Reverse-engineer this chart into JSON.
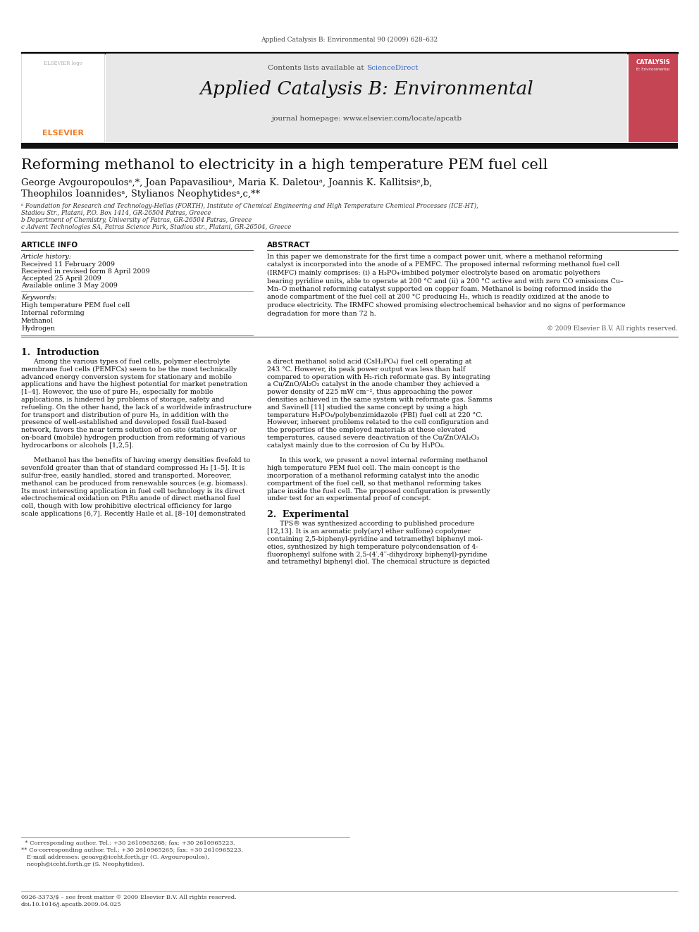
{
  "page_width": 9.92,
  "page_height": 13.23,
  "bg_color": "#ffffff",
  "journal_ref": "Applied Catalysis B: Environmental 90 (2009) 628–632",
  "header_bg": "#e8e8e8",
  "header_line_color": "#000000",
  "sciencedirect_color": "#3366cc",
  "journal_name": "Applied Catalysis B: Environmental",
  "journal_homepage": "journal homepage: www.elsevier.com/locate/apcatb",
  "title": "Reforming methanol to electricity in a high temperature PEM fuel cell",
  "author_line1": "George Avgouropoulosᵃ,*, Joan Papavasiliouᵃ, Maria K. Daletouᵃ, Joannis K. Kallitsisᵃ,b,",
  "author_line2": "Theophilos Ioannidesᵃ, Stylianos Neophytidesᵃ,c,**",
  "affil_a1": "ᵃ Foundation for Research and Technology-Hellas (FORTH), Institute of Chemical Engineering and High Temperature Chemical Processes (ICE-HT),",
  "affil_a2": "Stadiou Str., Platani, P.O. Box 1414, GR-26504 Patras, Greece",
  "affil_b": "b Department of Chemistry, University of Patras, GR-26504 Patras, Greece",
  "affil_c": "c Advent Technologies SA, Patras Science Park, Stadiou str., Platani, GR-26504, Greece",
  "section_article_info": "ARTICLE INFO",
  "article_history_label": "Article history:",
  "received1": "Received 11 February 2009",
  "received2": "Received in revised form 8 April 2009",
  "accepted": "Accepted 25 April 2009",
  "available": "Available online 3 May 2009",
  "keywords_label": "Keywords:",
  "keywords": [
    "High temperature PEM fuel cell",
    "Internal reforming",
    "Methanol",
    "Hydrogen"
  ],
  "section_abstract": "ABSTRACT",
  "abstract_lines": [
    "In this paper we demonstrate for the first time a compact power unit, where a methanol reforming",
    "catalyst is incorporated into the anode of a PEMFC. The proposed internal reforming methanol fuel cell",
    "(IRMFC) mainly comprises: (i) a H₃PO₄-imbibed polymer electrolyte based on aromatic polyethers",
    "bearing pyridine units, able to operate at 200 °C and (ii) a 200 °C active and with zero CO emissions Cu–",
    "Mn–O methanol reforming catalyst supported on copper foam. Methanol is being reformed inside the",
    "anode compartment of the fuel cell at 200 °C producing H₂, which is readily oxidized at the anode to",
    "produce electricity. The IRMFC showed promising electrochemical behavior and no signs of performance",
    "degradation for more than 72 h."
  ],
  "copyright": "© 2009 Elsevier B.V. All rights reserved.",
  "intro_heading": "1.  Introduction",
  "intro_left_lines": [
    "      Among the various types of fuel cells, polymer electrolyte",
    "membrane fuel cells (PEMFCs) seem to be the most technically",
    "advanced energy conversion system for stationary and mobile",
    "applications and have the highest potential for market penetration",
    "[1–4]. However, the use of pure H₂, especially for mobile",
    "applications, is hindered by problems of storage, safety and",
    "refueling. On the other hand, the lack of a worldwide infrastructure",
    "for transport and distribution of pure H₂, in addition with the",
    "presence of well-established and developed fossil fuel-based",
    "network, favors the near term solution of on-site (stationary) or",
    "on-board (mobile) hydrogen production from reforming of various",
    "hydrocarbons or alcohols [1,2,5].",
    "",
    "      Methanol has the benefits of having energy densities fivefold to",
    "sevenfold greater than that of standard compressed H₂ [1–5]. It is",
    "sulfur-free, easily handled, stored and transported. Moreover,",
    "methanol can be produced from renewable sources (e.g. biomass).",
    "Its most interesting application in fuel cell technology is its direct",
    "electrochemical oxidation on PtRu anode of direct methanol fuel",
    "cell, though with low prohibitive electrical efficiency for large",
    "scale applications [6,7]. Recently Haile et al. [8–10] demonstrated"
  ],
  "intro_right_lines": [
    "a direct methanol solid acid (CsH₂PO₄) fuel cell operating at",
    "243 °C. However, its peak power output was less than half",
    "compared to operation with H₂-rich reformate gas. By integrating",
    "a Cu/ZnO/Al₂O₃ catalyst in the anode chamber they achieved a",
    "power density of 225 mW cm⁻², thus approaching the power",
    "densities achieved in the same system with reformate gas. Samms",
    "and Savinell [11] studied the same concept by using a high",
    "temperature H₃PO₄/polybenzimidazole (PBI) fuel cell at 220 °C.",
    "However, inherent problems related to the cell configuration and",
    "the properties of the employed materials at these elevated",
    "temperatures, caused severe deactivation of the Cu/ZnO/Al₂O₃",
    "catalyst mainly due to the corrosion of Cu by H₃PO₄.",
    "",
    "      In this work, we present a novel internal reforming methanol",
    "high temperature PEM fuel cell. The main concept is the",
    "incorporation of a methanol reforming catalyst into the anodic",
    "compartment of the fuel cell, so that methanol reforming takes",
    "place inside the fuel cell. The proposed configuration is presently",
    "under test for an experimental proof of concept."
  ],
  "exp_heading": "2.  Experimental",
  "exp_right_lines": [
    "      TPS® was synthesized according to published procedure",
    "[12,13]. It is an aromatic poly(aryl ether sulfone) copolymer",
    "containing 2,5-biphenyl-pyridine and tetramethyl biphenyl moi-",
    "eties, synthesized by high temperature polycondensation of 4-",
    "fluorophenyl sulfone with 2,5-(4′,4′′-dihydroxy biphenyl)-pyridine",
    "and tetramethyl biphenyl diol. The chemical structure is depicted"
  ],
  "footnote1": "  * Corresponding author. Tel.: +30 2610965268; fax: +30 2610965223.",
  "footnote2": "** Co-corresponding author. Tel.: +30 2610965265; fax: +30 2610965223.",
  "footnote3": "   E-mail addresses: geoavg@iceht.forth.gr (G. Avgouropoulos),",
  "footnote4": "   neoph@iceht.forth.gr (S. Neophytides).",
  "bottom_line1": "0926-3373/$ – see front matter © 2009 Elsevier B.V. All rights reserved.",
  "bottom_line2": "doi:10.1016/j.apcatb.2009.04.025",
  "elsevier_orange": "#f47920",
  "link_color": "#3366cc",
  "header_bar_color": "#111111",
  "text_color": "#000000",
  "gray_text": "#555555",
  "line_color": "#888888"
}
